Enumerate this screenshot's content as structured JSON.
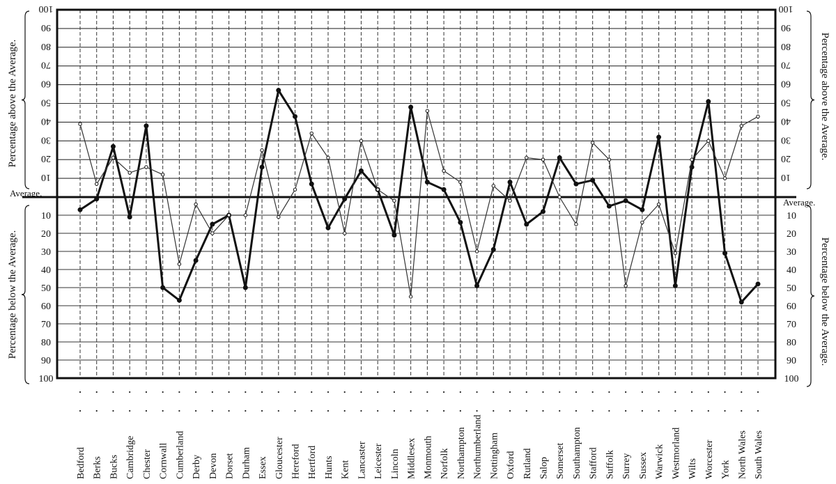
{
  "chart_data": {
    "type": "line",
    "title": "",
    "average_label": "Average.",
    "ylabel_above": "Percentage above the Average.",
    "ylabel_below": "Percentage below the Average.",
    "ylim": [
      -100,
      100
    ],
    "yticks_above": [
      10,
      20,
      30,
      40,
      50,
      60,
      70,
      80,
      90,
      100
    ],
    "yticks_below": [
      10,
      20,
      30,
      40,
      50,
      60,
      70,
      80,
      90,
      100
    ],
    "grid": true,
    "categories": [
      "Bedford",
      "Berks",
      "Bucks",
      "Cambridge",
      "Chester",
      "Cornwall",
      "Cumberland",
      "Derby",
      "Devon",
      "Dorset",
      "Durham",
      "Essex",
      "Gloucester",
      "Hereford",
      "Hertford",
      "Hunts",
      "Kent",
      "Lancaster",
      "Leicester",
      "Lincoln",
      "Middlesex",
      "Monmouth",
      "Norfolk",
      "Northampton",
      "Northumberland",
      "Nottingham",
      "Oxford",
      "Rutland",
      "Salop",
      "Somerset",
      "Southampton",
      "Stafford",
      "Suffolk",
      "Surrey",
      "Sussex",
      "Warwick",
      "Westmorland",
      "Wilts",
      "Worcester",
      "York",
      "North Wales",
      "South Wales"
    ],
    "series": [
      {
        "style": "thick",
        "color": "#111111",
        "values": [
          -7,
          -1,
          27,
          -11,
          38,
          -50,
          -57,
          -35,
          -15,
          -10,
          -50,
          16,
          57,
          43,
          7,
          -17,
          -1,
          14,
          4,
          -21,
          48,
          8,
          4,
          -14,
          -49,
          -29,
          8,
          -15,
          -8,
          21,
          7,
          9,
          -5,
          -2,
          -7,
          32,
          -49,
          16,
          51,
          -31,
          -58,
          -48
        ]
      },
      {
        "style": "thin",
        "color": "#333333",
        "values": [
          39,
          7,
          21,
          13,
          16,
          12,
          -37,
          -4,
          -20,
          -10,
          -10,
          25,
          -11,
          4,
          34,
          21,
          -20,
          30,
          4,
          -2,
          -55,
          46,
          14,
          8,
          -30,
          6,
          -2,
          21,
          20,
          0,
          -15,
          29,
          20,
          -49,
          -14,
          -4,
          -31,
          20,
          30,
          10,
          38,
          43
        ]
      }
    ]
  }
}
